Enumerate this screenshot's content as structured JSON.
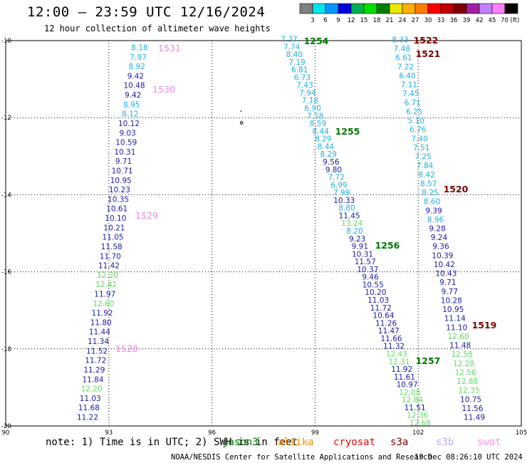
{
  "header": {
    "title": "12:00 – 23:59 UTC 12/16/2024",
    "subtitle": "12 hour collection of altimeter wave heights"
  },
  "colorbar": {
    "ticks": [
      "3",
      "6",
      "9",
      "12",
      "15",
      "18",
      "21",
      "24",
      "27",
      "30",
      "33",
      "36",
      "39",
      "42",
      "45",
      "70 (ft)"
    ],
    "colors": [
      "#808080",
      "#00e5ee",
      "#0096ff",
      "#0000e0",
      "#00b050",
      "#00e000",
      "#008000",
      "#e8e800",
      "#ffb000",
      "#ff8000",
      "#ff0000",
      "#c00000",
      "#800000",
      "#a020a0",
      "#c080ff",
      "#ff80ff",
      "#000000"
    ]
  },
  "map": {
    "lon_ticks": [
      "90",
      "93",
      "96",
      "99",
      "102",
      "105"
    ],
    "lat_ticks": [
      "-10",
      "-12",
      "-14",
      "-16",
      "-18",
      "-20"
    ],
    "colors": {
      "cyan": "#1fb1e3",
      "blue": "#1a1aa8",
      "lgreen": "#5fdd5f",
      "green": "#007800",
      "pink": "#ee88dd",
      "maroon": "#7a0000"
    },
    "track_labels": [
      {
        "text": "1531",
        "c": "pink"
      },
      {
        "text": "1530",
        "c": "pink"
      },
      {
        "text": "1529",
        "c": "pink"
      },
      {
        "text": "1528",
        "c": "pink"
      },
      {
        "text": "1254",
        "c": "green"
      },
      {
        "text": "1255",
        "c": "green"
      },
      {
        "text": "1256",
        "c": "green"
      },
      {
        "text": "1257",
        "c": "green"
      },
      {
        "text": "1522",
        "c": "maroon"
      },
      {
        "text": "1521",
        "c": "maroon"
      },
      {
        "text": "1520",
        "c": "maroon"
      },
      {
        "text": "1519",
        "c": "maroon"
      }
    ],
    "tracks": [
      {
        "name": "swot-1531-1528",
        "values": [
          [
            "8.18",
            "cyan"
          ],
          [
            "7.97",
            "cyan"
          ],
          [
            "8.92",
            "cyan"
          ],
          [
            "9.42",
            "blue"
          ],
          [
            "10.48",
            "blue"
          ],
          [
            "9.42",
            "blue"
          ],
          [
            "8.95",
            "cyan"
          ],
          [
            "8.12",
            "cyan"
          ],
          [
            "10.12",
            "blue"
          ],
          [
            "9.03",
            "blue"
          ],
          [
            "10.59",
            "blue"
          ],
          [
            "10.31",
            "blue"
          ],
          [
            "9.71",
            "blue"
          ],
          [
            "10.71",
            "blue"
          ],
          [
            "10.95",
            "blue"
          ],
          [
            "10.23",
            "blue"
          ],
          [
            "10.35",
            "blue"
          ],
          [
            "10.61",
            "blue"
          ],
          [
            "10.10",
            "blue"
          ],
          [
            "10.21",
            "blue"
          ],
          [
            "11.05",
            "blue"
          ],
          [
            "11.58",
            "blue"
          ],
          [
            "11.70",
            "blue"
          ],
          [
            "11.42",
            "blue"
          ],
          [
            "12.20",
            "lgreen"
          ],
          [
            "12.41",
            "lgreen"
          ],
          [
            "11.97",
            "blue"
          ],
          [
            "12.60",
            "lgreen"
          ],
          [
            "11.92",
            "blue"
          ],
          [
            "11.80",
            "blue"
          ],
          [
            "11.44",
            "blue"
          ],
          [
            "11.34",
            "blue"
          ],
          [
            "11.52",
            "blue"
          ],
          [
            "11.72",
            "blue"
          ],
          [
            "11.29",
            "blue"
          ],
          [
            "11.84",
            "blue"
          ],
          [
            "12.20",
            "lgreen"
          ],
          [
            "11.03",
            "blue"
          ],
          [
            "11.68",
            "blue"
          ],
          [
            "11.22",
            "blue"
          ]
        ]
      },
      {
        "name": "jason-1254-1257",
        "values": [
          [
            "7.37",
            "cyan"
          ],
          [
            "7.74",
            "cyan"
          ],
          [
            "8.40",
            "cyan"
          ],
          [
            "7.19",
            "cyan"
          ],
          [
            "6.81",
            "cyan"
          ],
          [
            "6.73",
            "cyan"
          ],
          [
            "7.43",
            "cyan"
          ],
          [
            "7.94",
            "cyan"
          ],
          [
            "7.18",
            "cyan"
          ],
          [
            "6.90",
            "cyan"
          ],
          [
            "7.58",
            "cyan"
          ],
          [
            "8.59",
            "cyan"
          ],
          [
            "8.44",
            "cyan"
          ],
          [
            "8.29",
            "cyan"
          ],
          [
            "8.44",
            "cyan"
          ],
          [
            "8.29",
            "cyan"
          ],
          [
            "9.56",
            "blue"
          ],
          [
            "9.80",
            "blue"
          ],
          [
            "7.72",
            "cyan"
          ],
          [
            "6.99",
            "cyan"
          ],
          [
            "7.99",
            "cyan"
          ],
          [
            "10.33",
            "blue"
          ],
          [
            "8.80",
            "cyan"
          ],
          [
            "11.45",
            "blue"
          ],
          [
            "13.24",
            "lgreen"
          ],
          [
            "8.20",
            "cyan"
          ],
          [
            "9.23",
            "blue"
          ],
          [
            "9.91",
            "blue"
          ],
          [
            "10.31",
            "blue"
          ],
          [
            "11.57",
            "blue"
          ],
          [
            "10.37",
            "blue"
          ],
          [
            "9.46",
            "blue"
          ],
          [
            "10.55",
            "blue"
          ],
          [
            "10.20",
            "blue"
          ],
          [
            "11.03",
            "blue"
          ],
          [
            "11.72",
            "blue"
          ],
          [
            "10.64",
            "blue"
          ],
          [
            "11.26",
            "blue"
          ],
          [
            "11.47",
            "blue"
          ],
          [
            "11.66",
            "blue"
          ],
          [
            "11.32",
            "blue"
          ],
          [
            "12.43",
            "lgreen"
          ],
          [
            "12.31",
            "lgreen"
          ],
          [
            "11.92",
            "blue"
          ],
          [
            "11.61",
            "blue"
          ],
          [
            "10.97",
            "blue"
          ],
          [
            "12.08",
            "lgreen"
          ],
          [
            "12.84",
            "lgreen"
          ],
          [
            "11.51",
            "blue"
          ],
          [
            "12.36",
            "lgreen"
          ],
          [
            "12.68",
            "lgreen"
          ]
        ]
      },
      {
        "name": "s3a-1522-1519",
        "values": [
          [
            "8.33",
            "cyan"
          ],
          [
            "7.48",
            "cyan"
          ],
          [
            "6.61",
            "cyan"
          ],
          [
            "7.22",
            "cyan"
          ],
          [
            "6.40",
            "cyan"
          ],
          [
            "7.11",
            "cyan"
          ],
          [
            "7.45",
            "cyan"
          ],
          [
            "6.71",
            "cyan"
          ],
          [
            "6.25",
            "cyan"
          ],
          [
            "5.10",
            "cyan"
          ],
          [
            "6.76",
            "cyan"
          ],
          [
            "7.40",
            "cyan"
          ],
          [
            "7.51",
            "cyan"
          ],
          [
            "7.25",
            "cyan"
          ],
          [
            "7.84",
            "cyan"
          ],
          [
            "8.42",
            "cyan"
          ],
          [
            "8.57",
            "cyan"
          ],
          [
            "8.25",
            "cyan"
          ],
          [
            "8.60",
            "cyan"
          ],
          [
            "9.39",
            "blue"
          ],
          [
            "8.96",
            "cyan"
          ],
          [
            "9.28",
            "blue"
          ],
          [
            "9.24",
            "blue"
          ],
          [
            "9.36",
            "blue"
          ],
          [
            "10.39",
            "blue"
          ],
          [
            "10.42",
            "blue"
          ],
          [
            "10.43",
            "blue"
          ],
          [
            "9.71",
            "blue"
          ],
          [
            "9.77",
            "blue"
          ],
          [
            "10.28",
            "blue"
          ],
          [
            "10.95",
            "blue"
          ],
          [
            "11.14",
            "blue"
          ],
          [
            "11.10",
            "blue"
          ],
          [
            "12.60",
            "lgreen"
          ],
          [
            "11.48",
            "blue"
          ],
          [
            "12.58",
            "lgreen"
          ],
          [
            "12.28",
            "lgreen"
          ],
          [
            "12.56",
            "lgreen"
          ],
          [
            "12.88",
            "lgreen"
          ],
          [
            "12.35",
            "lgreen"
          ],
          [
            "10.75",
            "blue"
          ],
          [
            "11.56",
            "blue"
          ],
          [
            "11.49",
            "blue"
          ]
        ]
      }
    ]
  },
  "footer": {
    "note": "note: 1) Time is in UTC; 2) SWH is in feet",
    "satellites": [
      {
        "label": "jason3",
        "color": "#007800"
      },
      {
        "label": "altika",
        "color": "#ff9000"
      },
      {
        "label": "cryosat",
        "color": "#ee0000"
      },
      {
        "label": "s3a",
        "color": "#7a0000"
      },
      {
        "label": "s3b",
        "color": "#c0a8ff"
      },
      {
        "label": "swot",
        "color": "#ff90e8"
      }
    ],
    "credit": "NOAA/NESDIS Center for Satellite Applications and Research",
    "timestamp": "19 Dec 08:26:10 UTC 2024"
  }
}
